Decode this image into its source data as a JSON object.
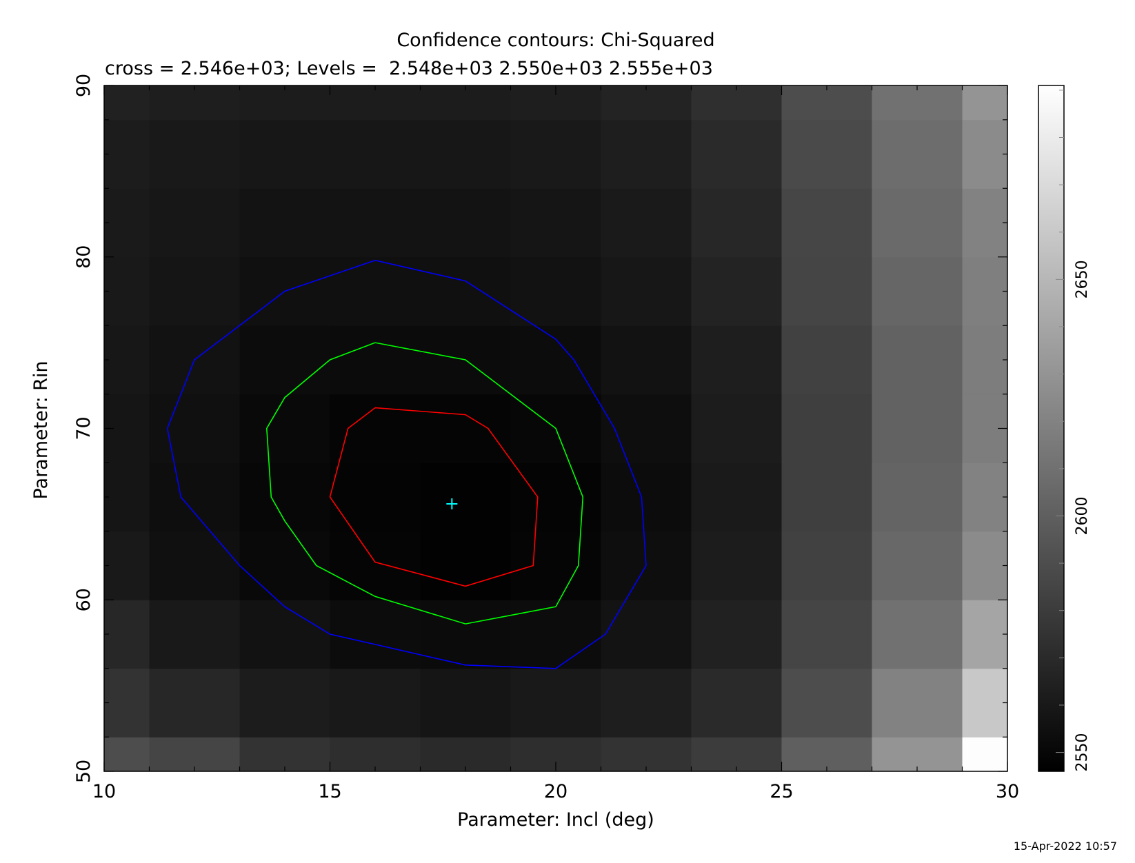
{
  "chart_data": {
    "type": "heatmap",
    "title": "Confidence contours: Chi-Squared",
    "subtitle": "cross = 2.546e+03; Levels =  2.548e+03 2.550e+03 2.555e+03",
    "xlabel": "Parameter: Incl (deg)",
    "ylabel": "Parameter: Rin",
    "xlim": [
      10,
      30
    ],
    "ylim": [
      50,
      90
    ],
    "x_ticks": [
      10,
      15,
      20,
      25,
      30
    ],
    "y_ticks": [
      50,
      60,
      70,
      80,
      90
    ],
    "x_cell_edges": [
      10,
      11,
      13,
      15,
      17,
      19,
      21,
      23,
      25,
      27,
      29,
      30
    ],
    "y_cell_edges": [
      50,
      52,
      56,
      60,
      64,
      68,
      72,
      76,
      80,
      84,
      88,
      90
    ],
    "chi2_grid_rows_bottom_to_top": [
      [
        2590,
        2585,
        2575,
        2572,
        2570,
        2572,
        2575,
        2580,
        2600,
        2630,
        2690
      ],
      [
        2575,
        2568,
        2562,
        2560,
        2558,
        2560,
        2563,
        2570,
        2590,
        2620,
        2660
      ],
      [
        2568,
        2560,
        2556,
        2553,
        2552,
        2553,
        2557,
        2565,
        2585,
        2610,
        2640
      ],
      [
        2560,
        2555,
        2551,
        2549,
        2547,
        2549,
        2554,
        2562,
        2583,
        2605,
        2625
      ],
      [
        2558,
        2554,
        2550,
        2548,
        2547,
        2548,
        2553,
        2561,
        2582,
        2603,
        2620
      ],
      [
        2558,
        2555,
        2551,
        2549,
        2549,
        2550,
        2554,
        2562,
        2582,
        2602,
        2617
      ],
      [
        2559,
        2556,
        2553,
        2552,
        2552,
        2553,
        2556,
        2563,
        2583,
        2602,
        2617
      ],
      [
        2560,
        2558,
        2555,
        2555,
        2555,
        2556,
        2559,
        2566,
        2585,
        2604,
        2618
      ],
      [
        2561,
        2559,
        2557,
        2557,
        2557,
        2558,
        2561,
        2568,
        2586,
        2606,
        2620
      ],
      [
        2562,
        2560,
        2559,
        2559,
        2559,
        2560,
        2563,
        2570,
        2588,
        2608,
        2625
      ],
      [
        2565,
        2563,
        2562,
        2562,
        2562,
        2563,
        2566,
        2573,
        2590,
        2610,
        2630
      ]
    ],
    "colorbar": {
      "min": 2546,
      "max": 2691,
      "tick_labels": [
        2550,
        2600,
        2650
      ]
    },
    "best_fit_cross": {
      "x": 17.7,
      "y": 65.6,
      "color": "#00ffff"
    },
    "contours": [
      {
        "level": 2548,
        "color": "#ff0000",
        "points": [
          [
            16.0,
            71.2
          ],
          [
            18.0,
            70.8
          ],
          [
            18.5,
            70.0
          ],
          [
            19.6,
            66.0
          ],
          [
            19.5,
            62.0
          ],
          [
            18.0,
            60.8
          ],
          [
            16.0,
            62.2
          ],
          [
            15.0,
            66.0
          ],
          [
            15.4,
            70.0
          ],
          [
            16.0,
            71.2
          ]
        ]
      },
      {
        "level": 2550,
        "color": "#00ff00",
        "points": [
          [
            16.0,
            75.0
          ],
          [
            18.0,
            74.0
          ],
          [
            20.0,
            70.0
          ],
          [
            20.6,
            66.0
          ],
          [
            20.5,
            62.0
          ],
          [
            20.0,
            59.6
          ],
          [
            18.0,
            58.6
          ],
          [
            16.0,
            60.2
          ],
          [
            14.7,
            62.0
          ],
          [
            14.0,
            64.6
          ],
          [
            13.7,
            66.0
          ],
          [
            13.6,
            70.0
          ],
          [
            14.0,
            71.8
          ],
          [
            15.0,
            74.0
          ],
          [
            16.0,
            75.0
          ]
        ]
      },
      {
        "level": 2555,
        "color": "#0000ff",
        "points": [
          [
            16.0,
            79.8
          ],
          [
            18.0,
            78.6
          ],
          [
            20.0,
            75.2
          ],
          [
            20.4,
            74.0
          ],
          [
            21.3,
            70.0
          ],
          [
            21.9,
            66.0
          ],
          [
            22.0,
            62.0
          ],
          [
            21.1,
            58.0
          ],
          [
            20.0,
            56.0
          ],
          [
            18.0,
            56.2
          ],
          [
            16.0,
            57.4
          ],
          [
            15.0,
            58.0
          ],
          [
            14.0,
            59.6
          ],
          [
            13.0,
            62.0
          ],
          [
            11.7,
            66.0
          ],
          [
            11.4,
            70.0
          ],
          [
            12.0,
            74.0
          ],
          [
            13.0,
            76.0
          ],
          [
            14.0,
            78.0
          ],
          [
            16.0,
            79.8
          ]
        ]
      }
    ],
    "grid": false
  },
  "timestamp": "15-Apr-2022 10:57"
}
